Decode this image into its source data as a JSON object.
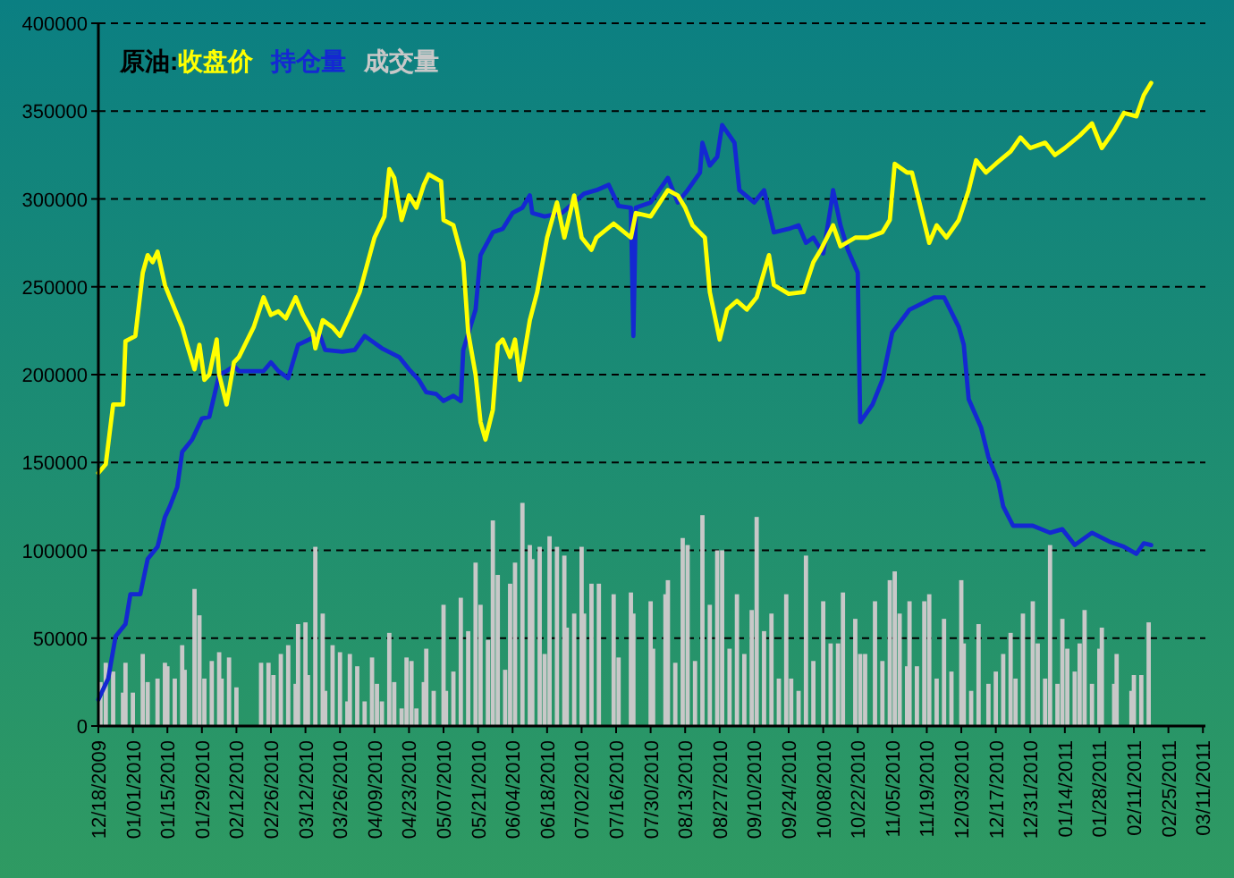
{
  "chart_data": {
    "type": "line",
    "legend_title": "原油:",
    "legend": "top left",
    "grid": "y",
    "xlim": [
      "2009-12-18",
      "2011-03-12"
    ],
    "ylim": [
      0,
      400000
    ],
    "yticks": [
      0,
      50000,
      100000,
      150000,
      200000,
      250000,
      300000,
      350000,
      400000
    ],
    "xticks": [
      {
        "value": "2009-12-18",
        "label": "12/18/2009"
      },
      {
        "value": "2010-01-01",
        "label": "01/01/2010"
      },
      {
        "value": "2010-01-15",
        "label": "01/15/2010"
      },
      {
        "value": "2010-01-29",
        "label": "01/29/2010"
      },
      {
        "value": "2010-02-12",
        "label": "02/12/2010"
      },
      {
        "value": "2010-02-26",
        "label": "02/26/2010"
      },
      {
        "value": "2010-03-12",
        "label": "03/12/2010"
      },
      {
        "value": "2010-03-26",
        "label": "03/26/2010"
      },
      {
        "value": "2010-04-09",
        "label": "04/09/2010"
      },
      {
        "value": "2010-04-23",
        "label": "04/23/2010"
      },
      {
        "value": "2010-05-07",
        "label": "05/07/2010"
      },
      {
        "value": "2010-05-21",
        "label": "05/21/2010"
      },
      {
        "value": "2010-06-04",
        "label": "06/04/2010"
      },
      {
        "value": "2010-06-18",
        "label": "06/18/2010"
      },
      {
        "value": "2010-07-02",
        "label": "07/02/2010"
      },
      {
        "value": "2010-07-16",
        "label": "07/16/2010"
      },
      {
        "value": "2010-07-30",
        "label": "07/30/2010"
      },
      {
        "value": "2010-08-13",
        "label": "08/13/2010"
      },
      {
        "value": "2010-08-27",
        "label": "08/27/2010"
      },
      {
        "value": "2010-09-10",
        "label": "09/10/2010"
      },
      {
        "value": "2010-09-24",
        "label": "09/24/2010"
      },
      {
        "value": "2010-10-08",
        "label": "10/08/2010"
      },
      {
        "value": "2010-10-22",
        "label": "10/22/2010"
      },
      {
        "value": "2010-11-05",
        "label": "11/05/2010"
      },
      {
        "value": "2010-11-19",
        "label": "11/19/2010"
      },
      {
        "value": "2010-12-03",
        "label": "12/03/2010"
      },
      {
        "value": "2010-12-17",
        "label": "12/17/2010"
      },
      {
        "value": "2010-12-31",
        "label": "12/31/2010"
      },
      {
        "value": "2011-01-14",
        "label": "01/14/2011"
      },
      {
        "value": "2011-01-28",
        "label": "01/28/2011"
      },
      {
        "value": "2011-02-11",
        "label": "02/11/2011"
      },
      {
        "value": "2011-02-25",
        "label": "02/25/2011"
      },
      {
        "value": "2011-03-11",
        "label": "03/11/2011"
      }
    ],
    "series": [
      {
        "name": "成交量",
        "type": "bar",
        "color": "#c8c8c8",
        "x": [
          "2009-12-18",
          "2009-12-21",
          "2009-12-24",
          "2009-12-28",
          "2009-12-29",
          "2010-01-01",
          "2010-01-05",
          "2010-01-07",
          "2010-01-11",
          "2010-01-14",
          "2010-01-15",
          "2010-01-18",
          "2010-01-21",
          "2010-01-22",
          "2010-01-26",
          "2010-01-28",
          "2010-01-30",
          "2010-02-02",
          "2010-02-05",
          "2010-02-06",
          "2010-02-09",
          "2010-02-12",
          "2010-02-22",
          "2010-02-25",
          "2010-02-27",
          "2010-03-02",
          "2010-03-05",
          "2010-03-08",
          "2010-03-09",
          "2010-03-12",
          "2010-03-13",
          "2010-03-16",
          "2010-03-19",
          "2010-03-20",
          "2010-03-23",
          "2010-03-26",
          "2010-03-29",
          "2010-03-30",
          "2010-04-02",
          "2010-04-05",
          "2010-04-08",
          "2010-04-10",
          "2010-04-12",
          "2010-04-15",
          "2010-04-17",
          "2010-04-20",
          "2010-04-22",
          "2010-04-24",
          "2010-04-26",
          "2010-04-29",
          "2010-04-30",
          "2010-05-03",
          "2010-05-07",
          "2010-05-08",
          "2010-05-11",
          "2010-05-14",
          "2010-05-17",
          "2010-05-20",
          "2010-05-22",
          "2010-05-25",
          "2010-05-27",
          "2010-05-29",
          "2010-06-01",
          "2010-06-03",
          "2010-06-05",
          "2010-06-08",
          "2010-06-11",
          "2010-06-12",
          "2010-06-15",
          "2010-06-17",
          "2010-06-19",
          "2010-06-22",
          "2010-06-25",
          "2010-06-26",
          "2010-06-29",
          "2010-07-02",
          "2010-07-03",
          "2010-07-06",
          "2010-07-09",
          "2010-07-15",
          "2010-07-17",
          "2010-07-22",
          "2010-07-23",
          "2010-07-30",
          "2010-07-31",
          "2010-08-05",
          "2010-08-06",
          "2010-08-09",
          "2010-08-12",
          "2010-08-14",
          "2010-08-17",
          "2010-08-20",
          "2010-08-23",
          "2010-08-26",
          "2010-08-28",
          "2010-08-31",
          "2010-09-03",
          "2010-09-06",
          "2010-09-09",
          "2010-09-11",
          "2010-09-14",
          "2010-09-17",
          "2010-09-20",
          "2010-09-23",
          "2010-09-25",
          "2010-09-28",
          "2010-10-01",
          "2010-10-04",
          "2010-10-08",
          "2010-10-11",
          "2010-10-14",
          "2010-10-16",
          "2010-10-21",
          "2010-10-23",
          "2010-10-25",
          "2010-10-29",
          "2010-11-01",
          "2010-11-04",
          "2010-11-06",
          "2010-11-08",
          "2010-11-11",
          "2010-11-12",
          "2010-11-15",
          "2010-11-18",
          "2010-11-20",
          "2010-11-23",
          "2010-11-26",
          "2010-11-29",
          "2010-12-03",
          "2010-12-04",
          "2010-12-07",
          "2010-12-10",
          "2010-12-14",
          "2010-12-17",
          "2010-12-20",
          "2010-12-23",
          "2010-12-25",
          "2010-12-28",
          "2011-01-01",
          "2011-01-03",
          "2011-01-06",
          "2011-01-08",
          "2011-01-11",
          "2011-01-13",
          "2011-01-15",
          "2011-01-18",
          "2011-01-20",
          "2011-01-22",
          "2011-01-25",
          "2011-01-28",
          "2011-01-29",
          "2011-02-03",
          "2011-02-04",
          "2011-02-10",
          "2011-02-11",
          "2011-02-14",
          "2011-02-17"
        ],
        "values": [
          25000,
          36000,
          31000,
          19000,
          36000,
          19000,
          41000,
          25000,
          27000,
          36000,
          34000,
          27000,
          46000,
          32000,
          78000,
          63000,
          27000,
          37000,
          42000,
          27000,
          39000,
          22000,
          36000,
          36000,
          29000,
          41000,
          46000,
          24000,
          58000,
          59000,
          29000,
          102000,
          64000,
          20000,
          46000,
          42000,
          14000,
          41000,
          34000,
          14000,
          39000,
          24000,
          14000,
          53000,
          25000,
          10000,
          39000,
          37000,
          10000,
          25000,
          44000,
          20000,
          69000,
          20000,
          31000,
          73000,
          54000,
          93000,
          69000,
          49000,
          117000,
          86000,
          32000,
          81000,
          93000,
          127000,
          103000,
          95000,
          102000,
          41000,
          108000,
          102000,
          97000,
          56000,
          64000,
          102000,
          64000,
          81000,
          81000,
          75000,
          39000,
          76000,
          64000,
          71000,
          44000,
          75000,
          83000,
          36000,
          107000,
          103000,
          37000,
          120000,
          69000,
          100000,
          100000,
          44000,
          75000,
          41000,
          66000,
          119000,
          54000,
          64000,
          27000,
          75000,
          27000,
          20000,
          97000,
          37000,
          71000,
          47000,
          47000,
          76000,
          61000,
          41000,
          41000,
          71000,
          37000,
          83000,
          88000,
          64000,
          34000,
          71000,
          34000,
          71000,
          75000,
          27000,
          61000,
          31000,
          83000,
          47000,
          20000,
          58000,
          24000,
          31000,
          41000,
          53000,
          27000,
          64000,
          71000,
          47000,
          27000,
          103000,
          24000,
          61000,
          44000,
          31000,
          47000,
          66000,
          24000,
          44000,
          56000,
          24000,
          41000,
          20000,
          29000,
          29000,
          59000
        ]
      },
      {
        "name": "持仓量",
        "color": "#1428d2",
        "x": [
          "2009-12-18",
          "2009-12-22",
          "2009-12-25",
          "2009-12-29",
          "2009-12-31",
          "2010-01-04",
          "2010-01-07",
          "2010-01-11",
          "2010-01-14",
          "2010-01-16",
          "2010-01-19",
          "2010-01-21",
          "2010-01-25",
          "2010-01-29",
          "2010-02-01",
          "2010-02-05",
          "2010-02-08",
          "2010-02-11",
          "2010-02-13",
          "2010-02-23",
          "2010-02-26",
          "2010-03-01",
          "2010-03-05",
          "2010-03-09",
          "2010-03-15",
          "2010-03-18",
          "2010-03-20",
          "2010-03-27",
          "2010-04-01",
          "2010-04-05",
          "2010-04-08",
          "2010-04-12",
          "2010-04-19",
          "2010-04-23",
          "2010-04-27",
          "2010-04-30",
          "2010-05-04",
          "2010-05-07",
          "2010-05-11",
          "2010-05-14",
          "2010-05-15",
          "2010-05-20",
          "2010-05-22",
          "2010-05-27",
          "2010-05-31",
          "2010-06-04",
          "2010-06-08",
          "2010-06-11",
          "2010-06-12",
          "2010-06-17",
          "2010-06-24",
          "2010-06-29",
          "2010-07-03",
          "2010-07-08",
          "2010-07-13",
          "2010-07-17",
          "2010-07-22",
          "2010-07-23",
          "2010-07-24",
          "2010-07-30",
          "2010-08-06",
          "2010-08-10",
          "2010-08-14",
          "2010-08-19",
          "2010-08-20",
          "2010-08-23",
          "2010-08-26",
          "2010-08-28",
          "2010-09-02",
          "2010-09-04",
          "2010-09-10",
          "2010-09-14",
          "2010-09-18",
          "2010-09-24",
          "2010-09-28",
          "2010-10-01",
          "2010-10-04",
          "2010-10-08",
          "2010-10-11",
          "2010-10-12",
          "2010-10-15",
          "2010-10-18",
          "2010-10-22",
          "2010-10-23",
          "2010-10-28",
          "2010-11-01",
          "2010-11-05",
          "2010-11-12",
          "2010-11-22",
          "2010-11-26",
          "2010-12-02",
          "2010-12-04",
          "2010-12-06",
          "2010-12-11",
          "2010-12-14",
          "2010-12-18",
          "2010-12-20",
          "2010-12-24",
          "2011-01-01",
          "2011-01-08",
          "2011-01-13",
          "2011-01-18",
          "2011-01-25",
          "2011-02-01",
          "2011-02-07",
          "2011-02-12",
          "2011-02-15",
          "2011-02-18"
        ],
        "values": [
          15000,
          27000,
          51000,
          58000,
          75000,
          75000,
          95000,
          102000,
          119000,
          125000,
          136000,
          156000,
          163000,
          175000,
          176000,
          200000,
          202000,
          205000,
          202000,
          202000,
          207000,
          202000,
          198000,
          217000,
          221000,
          222000,
          214000,
          213000,
          214000,
          222000,
          219000,
          215000,
          210000,
          203000,
          197000,
          190000,
          189000,
          185000,
          188000,
          185000,
          214000,
          237000,
          268000,
          281000,
          283000,
          292000,
          295000,
          302000,
          292000,
          290000,
          292000,
          298000,
          303000,
          305000,
          308000,
          296000,
          295000,
          222000,
          295000,
          298000,
          312000,
          298000,
          305000,
          315000,
          332000,
          319000,
          324000,
          342000,
          332000,
          305000,
          298000,
          305000,
          281000,
          283000,
          285000,
          275000,
          278000,
          269000,
          295000,
          305000,
          285000,
          271000,
          258000,
          173000,
          183000,
          197000,
          224000,
          237000,
          244000,
          244000,
          227000,
          217000,
          186000,
          170000,
          153000,
          139000,
          125000,
          114000,
          114000,
          110000,
          112000,
          103000,
          110000,
          105000,
          102000,
          98000,
          104000,
          103000
        ]
      },
      {
        "name": "收盘价",
        "color": "#ffff00",
        "x": [
          "2009-12-18",
          "2009-12-21",
          "2009-12-24",
          "2009-12-28",
          "2009-12-29",
          "2010-01-02",
          "2010-01-05",
          "2010-01-07",
          "2010-01-09",
          "2010-01-11",
          "2010-01-14",
          "2010-01-16",
          "2010-01-21",
          "2010-01-23",
          "2010-01-26",
          "2010-01-28",
          "2010-01-30",
          "2010-02-01",
          "2010-02-04",
          "2010-02-05",
          "2010-02-08",
          "2010-02-11",
          "2010-02-13",
          "2010-02-19",
          "2010-02-23",
          "2010-02-26",
          "2010-03-01",
          "2010-03-04",
          "2010-03-08",
          "2010-03-11",
          "2010-03-15",
          "2010-03-16",
          "2010-03-19",
          "2010-03-23",
          "2010-03-26",
          "2010-03-30",
          "2010-04-03",
          "2010-04-09",
          "2010-04-13",
          "2010-04-15",
          "2010-04-17",
          "2010-04-20",
          "2010-04-23",
          "2010-04-26",
          "2010-04-29",
          "2010-05-01",
          "2010-05-06",
          "2010-05-07",
          "2010-05-11",
          "2010-05-15",
          "2010-05-17",
          "2010-05-20",
          "2010-05-22",
          "2010-05-24",
          "2010-05-27",
          "2010-05-29",
          "2010-05-31",
          "2010-06-03",
          "2010-06-05",
          "2010-06-07",
          "2010-06-11",
          "2010-06-14",
          "2010-06-18",
          "2010-06-22",
          "2010-06-25",
          "2010-06-29",
          "2010-07-02",
          "2010-07-06",
          "2010-07-08",
          "2010-07-15",
          "2010-07-22",
          "2010-07-24",
          "2010-07-30",
          "2010-08-06",
          "2010-08-10",
          "2010-08-13",
          "2010-08-16",
          "2010-08-21",
          "2010-08-23",
          "2010-08-27",
          "2010-08-30",
          "2010-09-03",
          "2010-09-07",
          "2010-09-11",
          "2010-09-16",
          "2010-09-18",
          "2010-09-24",
          "2010-09-30",
          "2010-10-04",
          "2010-10-07",
          "2010-10-12",
          "2010-10-15",
          "2010-10-21",
          "2010-10-26",
          "2010-11-01",
          "2010-11-04",
          "2010-11-06",
          "2010-11-11",
          "2010-11-13",
          "2010-11-16",
          "2010-11-20",
          "2010-11-23",
          "2010-11-27",
          "2010-12-02",
          "2010-12-06",
          "2010-12-09",
          "2010-12-13",
          "2010-12-17",
          "2010-12-23",
          "2010-12-27",
          "2010-12-31",
          "2011-01-06",
          "2011-01-10",
          "2011-01-14",
          "2011-01-20",
          "2011-01-25",
          "2011-01-29",
          "2011-02-03",
          "2011-02-07",
          "2011-02-12",
          "2011-02-15",
          "2011-02-18"
        ],
        "values": [
          144000,
          149000,
          183000,
          183000,
          219000,
          222000,
          258000,
          268000,
          264000,
          270000,
          251000,
          244000,
          227000,
          217000,
          203000,
          217000,
          197000,
          200000,
          220000,
          200000,
          183000,
          207000,
          210000,
          227000,
          244000,
          234000,
          236000,
          232000,
          244000,
          234000,
          224000,
          215000,
          231000,
          227000,
          222000,
          234000,
          247000,
          278000,
          290000,
          317000,
          312000,
          288000,
          302000,
          295000,
          308000,
          314000,
          310000,
          288000,
          285000,
          264000,
          224000,
          200000,
          173000,
          163000,
          180000,
          217000,
          220000,
          210000,
          220000,
          197000,
          231000,
          247000,
          278000,
          298000,
          278000,
          302000,
          278000,
          271000,
          278000,
          286000,
          278000,
          292000,
          290000,
          305000,
          302000,
          295000,
          285000,
          278000,
          247000,
          220000,
          237000,
          242000,
          237000,
          244000,
          268000,
          251000,
          246000,
          247000,
          264000,
          271000,
          285000,
          273000,
          278000,
          278000,
          281000,
          288000,
          320000,
          315000,
          315000,
          298000,
          275000,
          285000,
          278000,
          288000,
          305000,
          322000,
          315000,
          320000,
          327000,
          335000,
          329000,
          332000,
          325000,
          329000,
          336000,
          343000,
          329000,
          339000,
          349000,
          347000,
          359000,
          366000
        ]
      }
    ]
  }
}
